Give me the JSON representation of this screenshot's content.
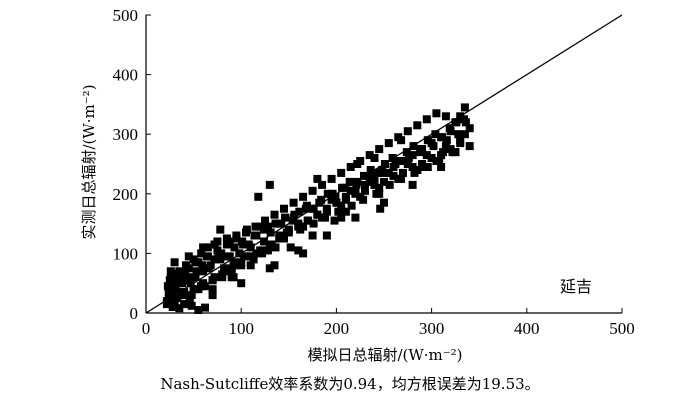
{
  "chart_data": {
    "type": "scatter",
    "title": "",
    "xlabel": "模拟日总辐射/(W·m⁻²)",
    "ylabel": "实测日总辐射/(W·m⁻²)",
    "xlim": [
      0,
      500
    ],
    "ylim": [
      0,
      500
    ],
    "x_ticks": [
      "0",
      "100",
      "200",
      "300",
      "400",
      "500"
    ],
    "y_ticks": [
      "0",
      "100",
      "200",
      "300",
      "400",
      "500"
    ],
    "grid": false,
    "legend": "none",
    "station_label": "延吉",
    "reference_line": {
      "from": [
        0,
        0
      ],
      "to": [
        500,
        500
      ]
    },
    "marker": "square",
    "marker_color": "#000000",
    "series": [
      {
        "x": [
          22,
          24,
          25,
          27,
          28,
          30,
          33,
          35,
          38,
          40,
          42,
          45,
          48,
          50,
          52,
          55,
          58,
          60,
          62,
          65,
          68,
          70,
          72,
          75,
          78,
          80,
          82,
          85,
          88,
          90,
          92,
          95,
          98,
          100,
          103,
          106,
          110,
          113,
          116,
          120,
          124,
          128,
          132,
          136,
          140,
          145,
          150,
          155,
          160,
          165,
          170,
          175,
          180,
          185,
          190,
          195,
          200,
          205,
          210,
          215,
          220,
          225,
          230,
          235,
          240,
          245,
          250,
          255,
          260,
          265,
          270,
          275,
          280,
          285,
          290,
          295,
          300,
          305,
          310,
          315,
          320,
          325,
          330,
          335,
          340,
          22,
          25,
          28,
          30,
          35,
          40,
          45,
          50,
          55,
          60,
          65,
          70,
          75,
          80,
          85,
          90,
          95,
          100,
          105,
          110,
          115,
          120,
          125,
          130,
          135,
          140,
          145,
          150,
          155,
          160,
          165,
          170,
          175,
          180,
          185,
          190,
          195,
          200,
          205,
          210,
          215,
          220,
          225,
          230,
          235,
          240,
          245,
          250,
          255,
          260,
          265,
          270,
          275,
          280,
          285,
          290,
          295,
          300,
          305,
          310,
          315,
          320,
          325,
          330,
          335,
          23,
          26,
          30,
          34,
          38,
          42,
          46,
          52,
          58,
          64,
          70,
          76,
          82,
          88,
          94,
          102,
          108,
          114,
          122,
          128,
          136,
          142,
          148,
          156,
          162,
          168,
          176,
          182,
          188,
          196,
          202,
          208,
          216,
          222,
          228,
          236,
          242,
          248,
          256,
          262,
          268,
          276,
          282,
          288,
          296,
          302,
          308,
          316,
          322,
          328,
          336,
          24,
          27,
          31,
          36,
          41,
          47,
          53,
          59,
          66,
          72,
          79,
          86,
          93,
          101,
          108,
          116,
          124,
          131,
          139,
          146,
          154,
          161,
          169,
          176,
          184,
          191,
          199,
          206,
          214,
          221,
          229,
          236,
          244,
          251,
          259,
          266,
          274,
          281,
          289,
          296,
          304,
          311,
          319,
          326,
          334,
          30,
          45,
          60,
          78,
          92,
          118,
          135,
          152,
          175,
          198,
          222,
          246,
          268,
          290,
          312,
          330,
          40,
          70,
          100,
          130,
          160,
          190,
          220,
          250,
          280,
          310,
          340,
          28,
          35,
          48,
          55,
          62,
          26,
          32,
          44,
          58,
          72,
          90,
          110,
          130,
          165,
          205,
          245,
          285,
          325,
          180,
          210,
          240
        ],
        "y": [
          20,
          40,
          55,
          30,
          60,
          45,
          25,
          70,
          50,
          35,
          80,
          55,
          30,
          90,
          60,
          40,
          100,
          70,
          45,
          110,
          80,
          55,
          60,
          120,
          90,
          65,
          75,
          125,
          95,
          70,
          85,
          130,
          100,
          80,
          95,
          140,
          110,
          90,
          100,
          145,
          120,
          105,
          115,
          150,
          130,
          125,
          140,
          160,
          150,
          145,
          155,
          175,
          165,
          160,
          170,
          190,
          185,
          180,
          190,
          205,
          200,
          195,
          205,
          220,
          215,
          210,
          220,
          235,
          230,
          225,
          235,
          250,
          245,
          240,
          250,
          265,
          260,
          255,
          265,
          280,
          275,
          270,
          290,
          300,
          310,
          15,
          25,
          35,
          20,
          50,
          30,
          75,
          40,
          85,
          50,
          95,
          40,
          105,
          60,
          115,
          75,
          125,
          85,
          135,
          95,
          145,
          105,
          155,
          115,
          165,
          125,
          175,
          135,
          185,
          145,
          195,
          155,
          205,
          165,
          215,
          175,
          225,
          185,
          235,
          195,
          245,
          205,
          255,
          215,
          265,
          225,
          275,
          235,
          285,
          245,
          295,
          255,
          305,
          265,
          315,
          275,
          325,
          285,
          335,
          295,
          330,
          305,
          320,
          330,
          345,
          45,
          60,
          20,
          65,
          35,
          75,
          25,
          85,
          45,
          95,
          55,
          100,
          70,
          120,
          80,
          115,
          95,
          130,
          100,
          145,
          110,
          150,
          135,
          165,
          140,
          175,
          150,
          185,
          160,
          200,
          170,
          210,
          180,
          220,
          190,
          230,
          200,
          240,
          215,
          250,
          225,
          260,
          235,
          270,
          245,
          280,
          255,
          290,
          270,
          300,
          320,
          30,
          50,
          40,
          55,
          65,
          50,
          70,
          80,
          75,
          90,
          100,
          95,
          110,
          120,
          115,
          130,
          140,
          135,
          150,
          160,
          155,
          170,
          180,
          175,
          190,
          200,
          195,
          210,
          220,
          215,
          230,
          240,
          235,
          250,
          260,
          255,
          270,
          280,
          275,
          290,
          300,
          295,
          310,
          320,
          325,
          85,
          95,
          110,
          140,
          60,
          195,
          80,
          110,
          130,
          155,
          250,
          175,
          290,
          245,
          270,
          285,
          15,
          30,
          50,
          75,
          105,
          130,
          160,
          185,
          215,
          245,
          280,
          10,
          8,
          12,
          5,
          9,
          70,
          65,
          60,
          45,
          115,
          60,
          80,
          215,
          100,
          160,
          200,
          240,
          270,
          225,
          170,
          260
        ]
      }
    ]
  }
}
